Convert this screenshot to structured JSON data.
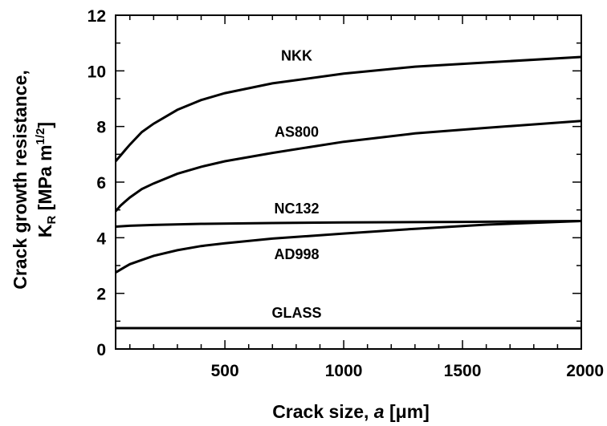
{
  "chart_data": {
    "type": "line",
    "xlabel": {
      "main": "Crack size, ",
      "var": "a",
      "unit": " [μm]"
    },
    "ylabel": {
      "line1": "Crack growth resistance,",
      "line2_prefix": "K",
      "line2_sub": "R",
      "line2_mid": " [MPa m",
      "line2_sup": "1/2",
      "line2_suffix": "]"
    },
    "xlim": [
      40,
      2000
    ],
    "ylim": [
      0,
      12
    ],
    "x_major_ticks": [
      500,
      1000,
      1500,
      2000
    ],
    "x_tick_labels": [
      "500",
      "1000",
      "1500",
      "2000"
    ],
    "x_minor_step": 100,
    "y_major_ticks": [
      0,
      2,
      4,
      6,
      8,
      10,
      12
    ],
    "y_tick_labels": [
      "0",
      "2",
      "4",
      "6",
      "8",
      "10",
      "12"
    ],
    "y_minor_step": 1,
    "grid": false,
    "series": [
      {
        "name": "NKK",
        "x": [
          40,
          60,
          80,
          100,
          150,
          200,
          300,
          400,
          500,
          700,
          1000,
          1300,
          1600,
          2000
        ],
        "y": [
          6.75,
          6.95,
          7.15,
          7.35,
          7.8,
          8.1,
          8.6,
          8.95,
          9.2,
          9.55,
          9.9,
          10.15,
          10.3,
          10.5
        ],
        "label_at": [
          802,
          10.55
        ]
      },
      {
        "name": "AS800",
        "x": [
          40,
          60,
          80,
          100,
          150,
          200,
          300,
          400,
          500,
          700,
          1000,
          1300,
          1600,
          2000
        ],
        "y": [
          4.95,
          5.15,
          5.3,
          5.45,
          5.75,
          5.95,
          6.3,
          6.55,
          6.75,
          7.05,
          7.45,
          7.75,
          7.95,
          8.2
        ],
        "label_at": [
          802,
          7.8
        ]
      },
      {
        "name": "NC132",
        "x": [
          40,
          100,
          200,
          400,
          700,
          1000,
          1500,
          2000
        ],
        "y": [
          4.4,
          4.43,
          4.46,
          4.5,
          4.53,
          4.55,
          4.57,
          4.6
        ],
        "label_at": [
          802,
          5.05
        ]
      },
      {
        "name": "AD998",
        "x": [
          40,
          60,
          80,
          100,
          150,
          200,
          300,
          400,
          500,
          700,
          1000,
          1300,
          1600,
          2000
        ],
        "y": [
          2.75,
          2.85,
          2.95,
          3.05,
          3.2,
          3.35,
          3.55,
          3.7,
          3.8,
          3.97,
          4.15,
          4.32,
          4.47,
          4.6
        ],
        "label_at": [
          802,
          3.4
        ]
      },
      {
        "name": "GLASS",
        "x": [
          40,
          2000
        ],
        "y": [
          0.75,
          0.75
        ],
        "label_at": [
          802,
          1.3
        ]
      }
    ]
  }
}
